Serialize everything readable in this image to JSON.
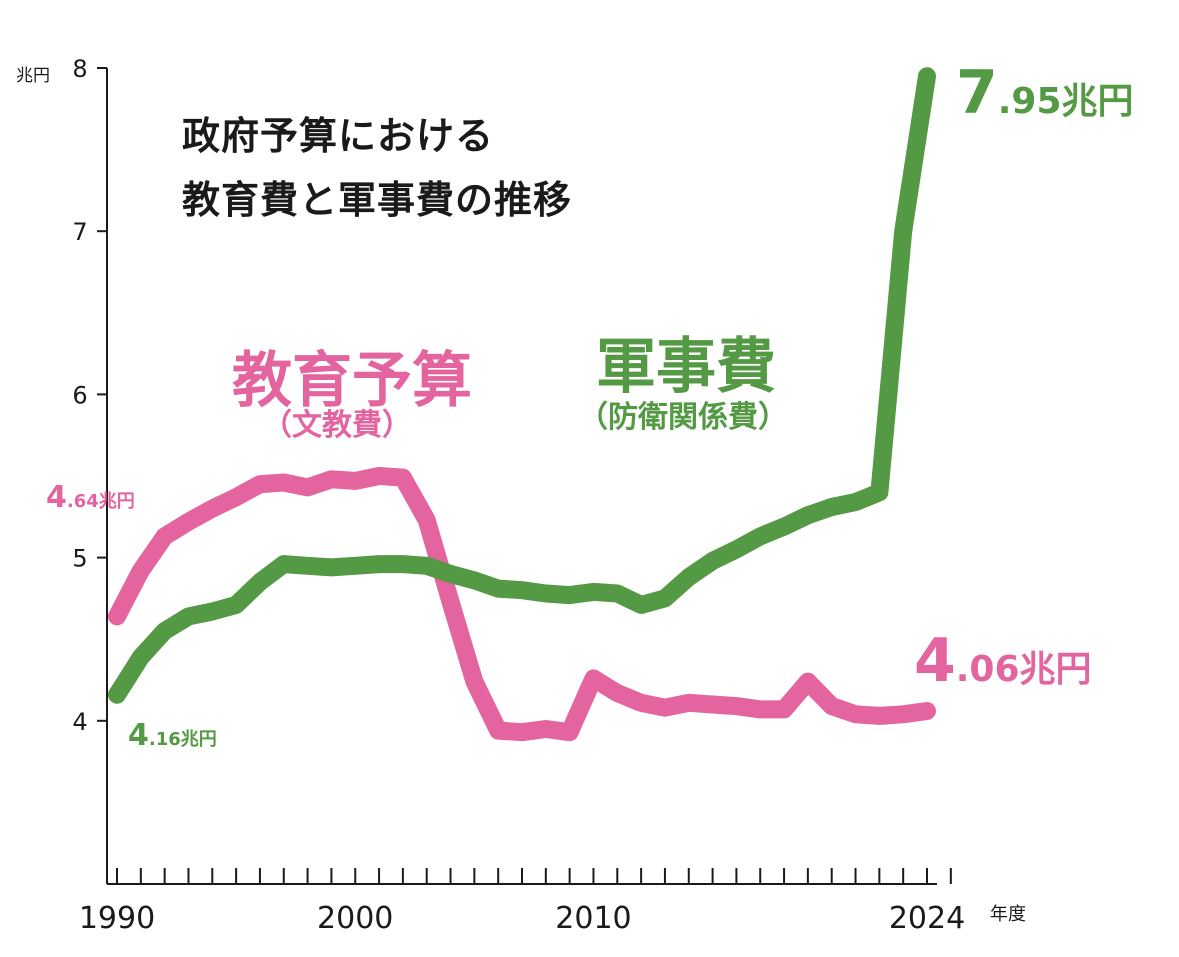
{
  "title_line1": "政府予算における",
  "title_line2": "教育費と軍事費の推移",
  "y_unit": "兆円",
  "x_unit": "年度",
  "colors": {
    "education": "#e3649f",
    "military": "#549943",
    "axis": "#1a1a1a"
  },
  "labels": {
    "education_name": "教育予算",
    "education_sub": "（文教費）",
    "military_name": "軍事費",
    "military_sub": "（防衛関係費）",
    "edu_start_lead": "4",
    "edu_start_rest": ".64兆円",
    "edu_end_lead": "4",
    "edu_end_rest": ".06兆円",
    "mil_start_lead": "4",
    "mil_start_rest": ".16兆円",
    "mil_end_lead": "7",
    "mil_end_rest": ".95兆円"
  },
  "chart_data": {
    "type": "line",
    "title": "政府予算における教育費と軍事費の推移",
    "xlabel": "年度",
    "ylabel": "兆円",
    "xlim": [
      1990,
      2024
    ],
    "ylim": [
      3,
      8
    ],
    "x_tick_labels": [
      "1990",
      "2000",
      "2010",
      "2024"
    ],
    "y_tick_labels": [
      "4",
      "5",
      "6",
      "7",
      "8"
    ],
    "x": [
      1990,
      1991,
      1992,
      1993,
      1994,
      1995,
      1996,
      1997,
      1998,
      1999,
      2000,
      2001,
      2002,
      2003,
      2004,
      2005,
      2006,
      2007,
      2008,
      2009,
      2010,
      2011,
      2012,
      2013,
      2014,
      2015,
      2016,
      2017,
      2018,
      2019,
      2020,
      2021,
      2022,
      2023,
      2024
    ],
    "series": [
      {
        "name": "教育予算（文教費）",
        "values": [
          4.64,
          4.92,
          5.13,
          5.22,
          5.3,
          5.37,
          5.45,
          5.46,
          5.43,
          5.48,
          5.47,
          5.5,
          5.49,
          5.23,
          4.73,
          4.24,
          3.94,
          3.93,
          3.95,
          3.93,
          4.26,
          4.17,
          4.11,
          4.08,
          4.11,
          4.1,
          4.09,
          4.07,
          4.07,
          4.24,
          4.09,
          4.04,
          4.03,
          4.04,
          4.06
        ]
      },
      {
        "name": "軍事費（防衛関係費）",
        "values": [
          4.16,
          4.39,
          4.55,
          4.64,
          4.67,
          4.71,
          4.85,
          4.96,
          4.95,
          4.94,
          4.95,
          4.96,
          4.96,
          4.95,
          4.9,
          4.86,
          4.81,
          4.8,
          4.78,
          4.77,
          4.79,
          4.78,
          4.71,
          4.75,
          4.88,
          4.98,
          5.05,
          5.13,
          5.19,
          5.26,
          5.31,
          5.34,
          5.4,
          7.0,
          7.95
        ]
      }
    ]
  }
}
